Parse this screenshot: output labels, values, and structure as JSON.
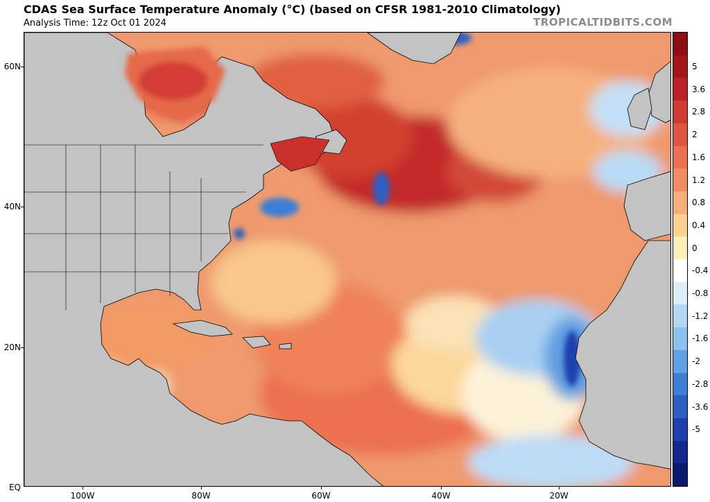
{
  "header": {
    "title": "CDAS Sea Surface Temperature Anomaly (°C) (based on CFSR 1981-2010 Climatology)",
    "subtitle": "Analysis Time: 12z Oct 01 2024",
    "credit": "TROPICALTIDBITS.COM"
  },
  "axes": {
    "lat_labels": [
      "60N",
      "40N",
      "20N",
      "EQ"
    ],
    "lon_labels": [
      "100W",
      "80W",
      "60W",
      "40W",
      "20W"
    ]
  },
  "colorbar": {
    "labels": [
      "5",
      "3.6",
      "2.8",
      "2",
      "1.6",
      "1.2",
      "0.8",
      "0.4",
      "0",
      "-0.4",
      "-0.8",
      "-1.2",
      "-1.6",
      "-2",
      "-2.8",
      "-3.6",
      "-5"
    ],
    "colors": [
      "#8e0f12",
      "#a4161a",
      "#bb2126",
      "#cf3a32",
      "#df5640",
      "#eb714f",
      "#f28d63",
      "#f6ae7a",
      "#fbd28e",
      "#feeeb8",
      "#ffffff",
      "#dcedfa",
      "#b3d8f5",
      "#8bc1ef",
      "#5ea1e4",
      "#3d7fd5",
      "#2d5fc3",
      "#1e3fad",
      "#12288f",
      "#0a1a6e"
    ]
  },
  "colors": {
    "land": "#c3c3c3",
    "ocean_base": "#ef9a6e"
  }
}
